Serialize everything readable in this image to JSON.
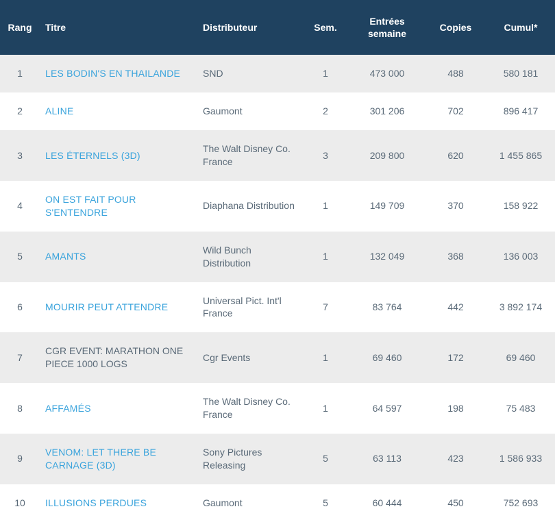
{
  "headers": {
    "rank": "Rang",
    "title": "Titre",
    "distributor": "Distributeur",
    "week": "Sem.",
    "entries": "Entrées semaine",
    "copies": "Copies",
    "cumul": "Cumul*"
  },
  "colors": {
    "header_bg": "#1f4260",
    "header_text": "#ffffff",
    "row_odd_bg": "#ececec",
    "row_even_bg": "#ffffff",
    "link_color": "#39a3dc",
    "text_color": "#5a6a78"
  },
  "rows": [
    {
      "rank": "1",
      "title": "LES BODIN'S EN THAiLANDE",
      "link": true,
      "distributor": "SND",
      "week": "1",
      "entries": "473 000",
      "copies": "488",
      "cumul": "580 181"
    },
    {
      "rank": "2",
      "title": "ALINE",
      "link": true,
      "distributor": "Gaumont",
      "week": "2",
      "entries": "301 206",
      "copies": "702",
      "cumul": "896 417"
    },
    {
      "rank": "3",
      "title": "LES ÉTERNELS (3D)",
      "link": true,
      "distributor": "The Walt Disney Co. France",
      "week": "3",
      "entries": "209 800",
      "copies": "620",
      "cumul": "1 455 865"
    },
    {
      "rank": "4",
      "title": "ON EST FAIT POUR S'ENTENDRE",
      "link": true,
      "distributor": "Diaphana Distribution",
      "week": "1",
      "entries": "149 709",
      "copies": "370",
      "cumul": "158 922"
    },
    {
      "rank": "5",
      "title": "AMANTS",
      "link": true,
      "distributor": "Wild Bunch Distribution",
      "week": "1",
      "entries": "132 049",
      "copies": "368",
      "cumul": "136 003"
    },
    {
      "rank": "6",
      "title": "MOURIR PEUT ATTENDRE",
      "link": true,
      "distributor": "Universal Pict. Int'l France",
      "week": "7",
      "entries": "83 764",
      "copies": "442",
      "cumul": "3 892 174"
    },
    {
      "rank": "7",
      "title": "CGR EVENT: MARATHON ONE PIECE 1000 LOGS",
      "link": false,
      "distributor": "Cgr Events",
      "week": "1",
      "entries": "69 460",
      "copies": "172",
      "cumul": "69 460"
    },
    {
      "rank": "8",
      "title": "AFFAMÉS",
      "link": true,
      "distributor": "The Walt Disney Co. France",
      "week": "1",
      "entries": "64 597",
      "copies": "198",
      "cumul": "75 483"
    },
    {
      "rank": "9",
      "title": "VENOM: LET THERE BE CARNAGE (3D)",
      "link": true,
      "distributor": "Sony Pictures Releasing",
      "week": "5",
      "entries": "63 113",
      "copies": "423",
      "cumul": "1 586 933"
    },
    {
      "rank": "10",
      "title": "ILLUSIONS PERDUES",
      "link": true,
      "distributor": "Gaumont",
      "week": "5",
      "entries": "60 444",
      "copies": "450",
      "cumul": "752 693"
    }
  ]
}
